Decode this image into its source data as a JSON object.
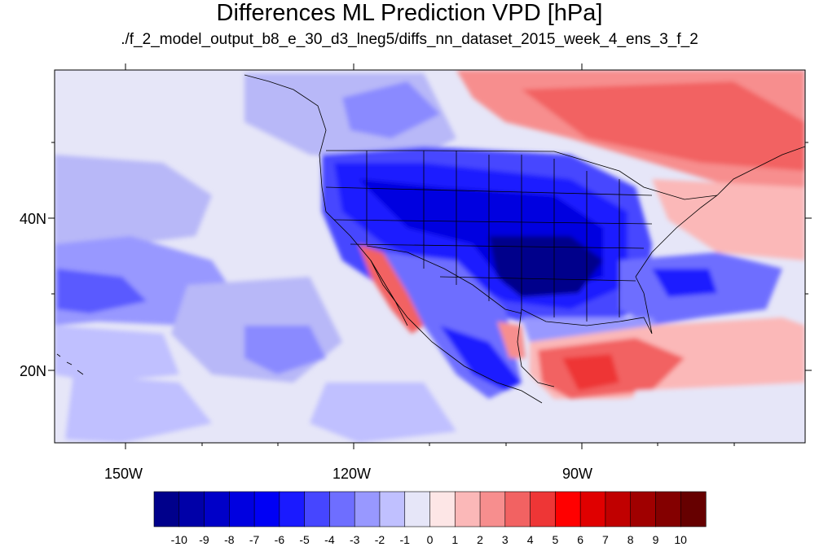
{
  "title": "Differences ML Prediction VPD [hPa]",
  "subtitle": "./f_2_model_output_b8_e_30_d3_lneg5/diffs_nn_dataset_2015_week_4_ens_3_f_2",
  "lon_labels": [
    "150W",
    "120W",
    "90W"
  ],
  "lat_labels": [
    "40N",
    "20N"
  ],
  "colorbar": {
    "labels": [
      "-10",
      "-9",
      "-8",
      "-7",
      "-6",
      "-5",
      "-4",
      "-3",
      "-2",
      "-1",
      "0",
      "1",
      "2",
      "3",
      "4",
      "5",
      "6",
      "7",
      "8",
      "9",
      "10"
    ],
    "colors": [
      "#00008b",
      "#0000a8",
      "#0000c8",
      "#0000e0",
      "#0000f5",
      "#1a1aff",
      "#4646ff",
      "#6e6eff",
      "#9898ff",
      "#c0c0ff",
      "#e6e6f8",
      "#fde6e6",
      "#fbb8b8",
      "#f78e8e",
      "#f26262",
      "#ee3636",
      "#ff0000",
      "#e00000",
      "#c00000",
      "#a00000",
      "#840000",
      "#660000"
    ]
  }
}
